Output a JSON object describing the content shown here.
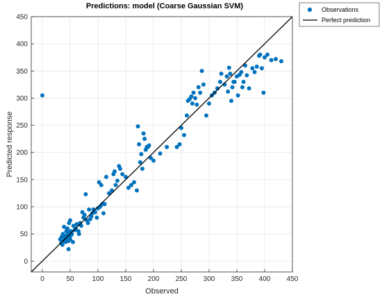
{
  "chart_data": {
    "type": "scatter",
    "title": "Predictions: model  (Coarse Gaussian SVM)",
    "xlabel": "Observed",
    "ylabel": "Predicted response",
    "xlim": [
      -20,
      450
    ],
    "ylim": [
      -20,
      450
    ],
    "xticks": [
      0,
      50,
      100,
      150,
      200,
      250,
      300,
      350,
      400,
      450
    ],
    "yticks": [
      0,
      50,
      100,
      150,
      200,
      250,
      300,
      350,
      400,
      450
    ],
    "grid": true,
    "legend_position": "outside-top-right",
    "series": [
      {
        "name": "Observations",
        "kind": "markers",
        "color": "#0072BD",
        "points": [
          [
            0,
            305
          ],
          [
            32,
            40
          ],
          [
            34,
            33
          ],
          [
            35,
            45
          ],
          [
            36,
            30
          ],
          [
            37,
            50
          ],
          [
            38,
            37
          ],
          [
            39,
            63
          ],
          [
            40,
            43
          ],
          [
            41,
            46
          ],
          [
            42,
            35
          ],
          [
            43,
            55
          ],
          [
            44,
            40
          ],
          [
            45,
            48
          ],
          [
            45,
            60
          ],
          [
            46,
            41
          ],
          [
            47,
            22
          ],
          [
            47,
            37
          ],
          [
            48,
            53
          ],
          [
            48,
            70
          ],
          [
            49,
            44
          ],
          [
            50,
            75
          ],
          [
            50,
            40
          ],
          [
            51,
            55
          ],
          [
            52,
            48
          ],
          [
            53,
            50
          ],
          [
            55,
            35
          ],
          [
            56,
            65
          ],
          [
            58,
            57
          ],
          [
            60,
            60
          ],
          [
            62,
            68
          ],
          [
            65,
            55
          ],
          [
            66,
            50
          ],
          [
            68,
            70
          ],
          [
            70,
            65
          ],
          [
            72,
            90
          ],
          [
            74,
            80
          ],
          [
            76,
            85
          ],
          [
            78,
            123
          ],
          [
            80,
            75
          ],
          [
            82,
            70
          ],
          [
            84,
            95
          ],
          [
            86,
            77
          ],
          [
            88,
            82
          ],
          [
            90,
            88
          ],
          [
            92,
            95
          ],
          [
            95,
            90
          ],
          [
            98,
            80
          ],
          [
            100,
            97
          ],
          [
            102,
            145
          ],
          [
            104,
            100
          ],
          [
            106,
            140
          ],
          [
            108,
            105
          ],
          [
            110,
            88
          ],
          [
            112,
            105
          ],
          [
            115,
            155
          ],
          [
            120,
            125
          ],
          [
            125,
            130
          ],
          [
            128,
            160
          ],
          [
            130,
            165
          ],
          [
            132,
            140
          ],
          [
            135,
            148
          ],
          [
            138,
            175
          ],
          [
            140,
            170
          ],
          [
            144,
            160
          ],
          [
            150,
            155
          ],
          [
            155,
            135
          ],
          [
            160,
            140
          ],
          [
            165,
            145
          ],
          [
            170,
            130
          ],
          [
            172,
            248
          ],
          [
            174,
            215
          ],
          [
            176,
            182
          ],
          [
            178,
            197
          ],
          [
            180,
            170
          ],
          [
            182,
            235
          ],
          [
            184,
            225
          ],
          [
            186,
            205
          ],
          [
            188,
            210
          ],
          [
            190,
            210
          ],
          [
            192,
            213
          ],
          [
            195,
            190
          ],
          [
            200,
            185
          ],
          [
            212,
            198
          ],
          [
            224,
            210
          ],
          [
            242,
            210
          ],
          [
            247,
            215
          ],
          [
            250,
            245
          ],
          [
            255,
            232
          ],
          [
            260,
            268
          ],
          [
            262,
            295
          ],
          [
            265,
            298
          ],
          [
            268,
            303
          ],
          [
            270,
            290
          ],
          [
            272,
            310
          ],
          [
            275,
            300
          ],
          [
            278,
            288
          ],
          [
            281,
            320
          ],
          [
            284,
            310
          ],
          [
            287,
            350
          ],
          [
            290,
            325
          ],
          [
            295,
            268
          ],
          [
            300,
            290
          ],
          [
            305,
            305
          ],
          [
            310,
            310
          ],
          [
            315,
            318
          ],
          [
            320,
            330
          ],
          [
            322,
            345
          ],
          [
            328,
            325
          ],
          [
            332,
            340
          ],
          [
            334,
            312
          ],
          [
            336,
            356
          ],
          [
            338,
            345
          ],
          [
            340,
            295
          ],
          [
            342,
            320
          ],
          [
            344,
            330
          ],
          [
            346,
            330
          ],
          [
            350,
            340
          ],
          [
            352,
            305
          ],
          [
            355,
            343
          ],
          [
            358,
            348
          ],
          [
            360,
            320
          ],
          [
            362,
            330
          ],
          [
            365,
            360
          ],
          [
            368,
            342
          ],
          [
            372,
            318
          ],
          [
            378,
            355
          ],
          [
            382,
            348
          ],
          [
            386,
            358
          ],
          [
            390,
            378
          ],
          [
            392,
            380
          ],
          [
            395,
            355
          ],
          [
            398,
            310
          ],
          [
            400,
            375
          ],
          [
            405,
            380
          ],
          [
            412,
            370
          ],
          [
            420,
            372
          ],
          [
            430,
            368
          ]
        ]
      },
      {
        "name": "Perfect prediction",
        "kind": "line",
        "color": "#000000",
        "points": [
          [
            -20,
            -20
          ],
          [
            450,
            450
          ]
        ]
      }
    ]
  }
}
